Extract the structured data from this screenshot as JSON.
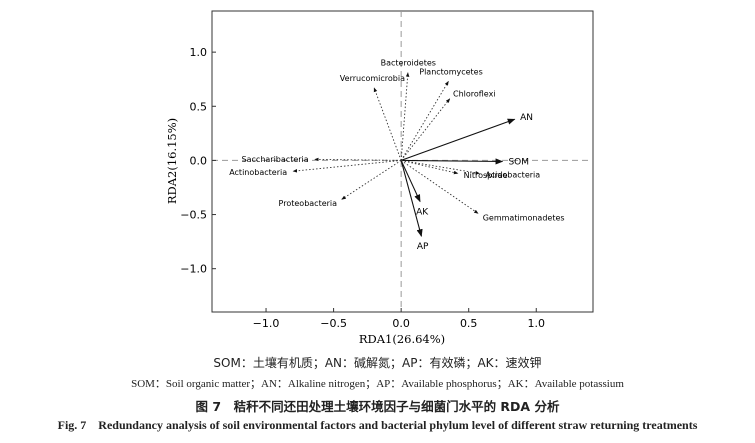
{
  "chart_data": {
    "type": "scatter",
    "subtype": "rda-biplot",
    "xlabel": "RDA1(26.64%)",
    "ylabel": "RDA2(16.15%)",
    "xlim": [
      -1.4,
      1.42
    ],
    "ylim": [
      -1.4,
      1.38
    ],
    "xticks": [
      -1.0,
      -0.5,
      0.0,
      0.5,
      1.0
    ],
    "xtick_labels": [
      "−1.0",
      "−0.5",
      "0.0",
      "0.5",
      "1.0"
    ],
    "yticks": [
      -1.0,
      -0.5,
      0.0,
      0.5,
      1.0
    ],
    "yticks_labels": [
      "−1.0",
      "−0.5",
      "0.0",
      "0.5",
      "1.0"
    ],
    "reference_lines": {
      "x": 0,
      "y": 0,
      "style": "dashed"
    },
    "grid": false,
    "environmental_factors": [
      {
        "label": "AN",
        "x": 0.84,
        "y": 0.38
      },
      {
        "label": "SOM",
        "x": 0.75,
        "y": -0.01
      },
      {
        "label": "AK",
        "x": 0.14,
        "y": -0.38
      },
      {
        "label": "AP",
        "x": 0.15,
        "y": -0.7
      }
    ],
    "bacterial_phyla": [
      {
        "label": "Bacteroidetes",
        "x": 0.05,
        "y": 0.81
      },
      {
        "label": "Planctomycetes",
        "x": 0.35,
        "y": 0.73
      },
      {
        "label": "Verrucomicrobia",
        "x": -0.2,
        "y": 0.67
      },
      {
        "label": "Chloroflexi",
        "x": 0.36,
        "y": 0.57
      },
      {
        "label": "Saccharibacteria",
        "x": -0.64,
        "y": 0.01
      },
      {
        "label": "Actinobacteria",
        "x": -0.8,
        "y": -0.1
      },
      {
        "label": "Proteobacteria",
        "x": -0.44,
        "y": -0.36
      },
      {
        "label": "Nitrospirae",
        "x": 0.42,
        "y": -0.12
      },
      {
        "label": "Acidobacteria",
        "x": 0.58,
        "y": -0.12
      },
      {
        "label": "Gemmatimonadetes",
        "x": 0.57,
        "y": -0.49
      }
    ]
  },
  "captions": {
    "cn_abbr": "SOM：土壤有机质；AN：碱解氮；AP：有效磷；AK：速效钾",
    "en_abbr": "SOM：Soil organic matter；AN：Alkaline nitrogen；AP：Available phosphorus；AK：Available potassium",
    "fig_cn": "图 7　秸秆不同还田处理土壤环境因子与细菌门水平的 RDA 分析",
    "fig_en": "Fig. 7　Redundancy analysis of soil environmental factors and bacterial phylum level of different straw returning treatments"
  }
}
